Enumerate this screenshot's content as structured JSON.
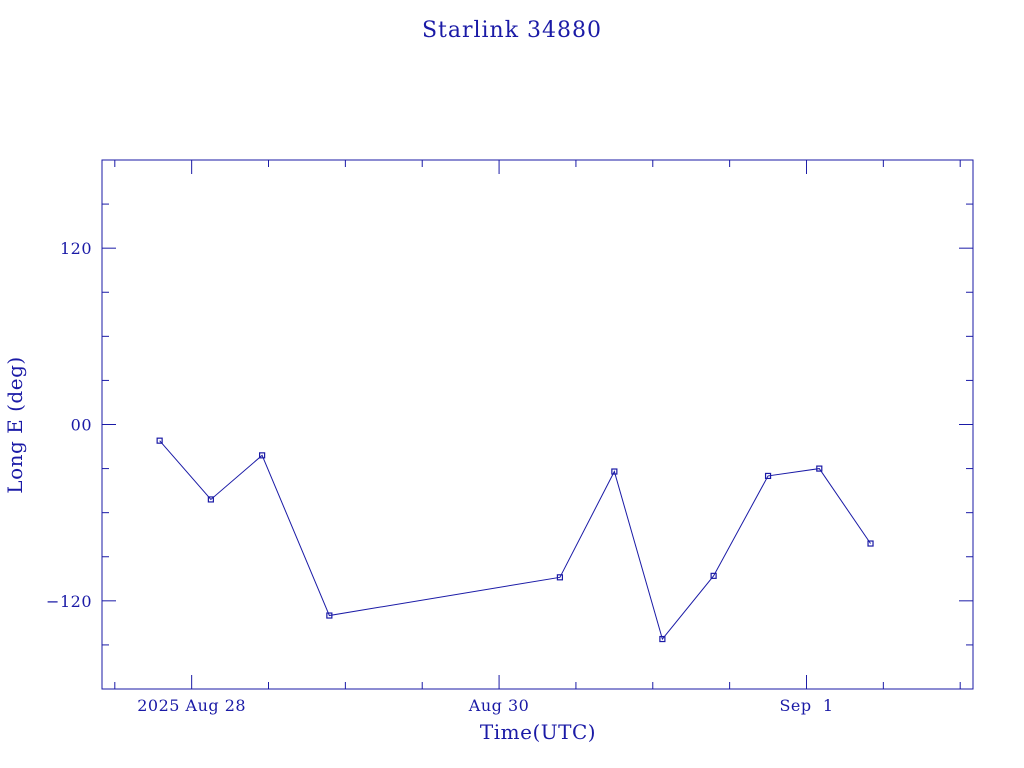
{
  "chart_data": {
    "type": "line",
    "title": "Starlink 34880",
    "xlabel": "Time(UTC)",
    "ylabel": "Long E (deg)",
    "ylim": [
      -180,
      180
    ],
    "xlim": [
      "2025-08-27T10:00",
      "2025-09-02T02:00"
    ],
    "grid": false,
    "legend": "none",
    "color": "#1a1aa6",
    "x_ticks": [
      {
        "label": "2025 Aug 28",
        "at": "2025-08-28T00:00"
      },
      {
        "label": "Aug 30",
        "at": "2025-08-30T00:00"
      },
      {
        "label": "Sep  1",
        "at": "2025-09-01T00:00"
      }
    ],
    "y_ticks": [
      {
        "label": "120",
        "value": 120
      },
      {
        "label": "00",
        "value": 0
      },
      {
        "label": "−120",
        "value": -120
      }
    ],
    "series": [
      {
        "x": [
          "2025-08-27T19:00",
          "2025-08-28T03:00",
          "2025-08-28T11:00",
          "2025-08-28T21:30",
          "2025-08-30T09:30",
          "2025-08-30T18:00",
          "2025-08-31T01:30",
          "2025-08-31T09:30",
          "2025-08-31T18:00",
          "2025-09-01T02:00",
          "2025-09-01T10:00"
        ],
        "y": [
          -11,
          -51,
          -21,
          -130,
          -104,
          -32,
          -146,
          -103,
          -35,
          -30,
          -81
        ]
      }
    ]
  }
}
